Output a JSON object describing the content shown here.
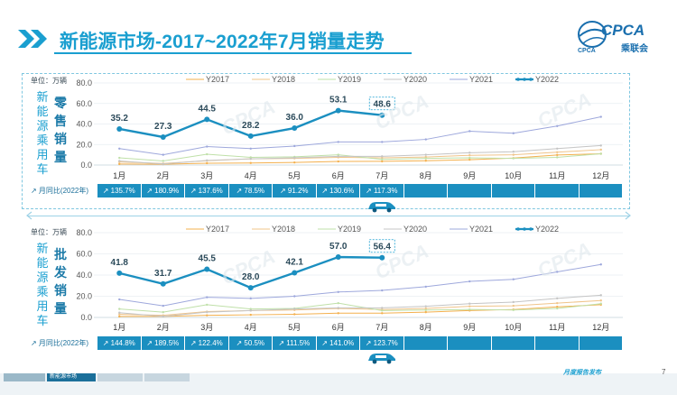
{
  "title": "新能源市场-2017~2022年7月销量走势",
  "logo": {
    "text": "CPCA",
    "subtext": "乘联会",
    "small": "CPCA"
  },
  "side_label": "新能源乘用车",
  "unit_label": "单位：万辆",
  "mom_header": "月同比(2022年)",
  "footer": {
    "tabs": [
      "",
      "新能源市场",
      "",
      ""
    ],
    "note": "月度报告发布",
    "page": "7"
  },
  "colors": {
    "accent": "#1a9fd0",
    "y2022": "#1b8fc0",
    "y2017": "#f3b04e",
    "y2018": "#f0c48a",
    "y2019": "#bfe0a8",
    "y2020": "#c4c4c4",
    "y2021": "#9ea8dc"
  },
  "chart_data": [
    {
      "type": "line",
      "panel_label": "零售销量",
      "months": [
        "1月",
        "2月",
        "3月",
        "4月",
        "5月",
        "6月",
        "7月",
        "8月",
        "9月",
        "10月",
        "11月",
        "12月"
      ],
      "ylim": [
        0,
        80
      ],
      "yticks": [
        "0.0",
        "20.0",
        "40.0",
        "60.0",
        "80.0"
      ],
      "legend": [
        "Y2017",
        "Y2018",
        "Y2019",
        "Y2020",
        "Y2021",
        "Y2022"
      ],
      "series": [
        {
          "name": "Y2017",
          "values": [
            1.0,
            0.8,
            1.8,
            2.0,
            2.5,
            3.5,
            3.6,
            4.2,
            5.2,
            6.8,
            9.8,
            11.0
          ]
        },
        {
          "name": "Y2018",
          "values": [
            3.0,
            1.5,
            4.2,
            6.0,
            6.5,
            7.5,
            7.0,
            7.8,
            9.5,
            10.0,
            12.5,
            15.0
          ]
        },
        {
          "name": "Y2019",
          "values": [
            7.0,
            4.0,
            10.5,
            7.5,
            8.0,
            10.0,
            5.5,
            6.5,
            7.0,
            6.5,
            7.5,
            11.0
          ]
        },
        {
          "name": "Y2020",
          "values": [
            4.0,
            1.0,
            4.5,
            6.0,
            7.0,
            8.5,
            8.5,
            10.0,
            12.0,
            13.0,
            16.0,
            19.0
          ]
        },
        {
          "name": "Y2021",
          "values": [
            16.0,
            10.0,
            18.0,
            16.0,
            18.5,
            22.5,
            22.5,
            25.0,
            33.0,
            31.0,
            38.0,
            47.0
          ]
        },
        {
          "name": "Y2022",
          "values": [
            35.2,
            27.3,
            44.5,
            28.2,
            36.0,
            53.1,
            48.6
          ],
          "labels": [
            "35.2",
            "27.3",
            "44.5",
            "28.2",
            "36.0",
            "53.1",
            "48.6"
          ]
        }
      ],
      "mom": [
        "135.7%",
        "180.9%",
        "137.6%",
        "78.5%",
        "91.2%",
        "130.6%",
        "117.3%"
      ]
    },
    {
      "type": "line",
      "panel_label": "批发销量",
      "months": [
        "1月",
        "2月",
        "3月",
        "4月",
        "5月",
        "6月",
        "7月",
        "8月",
        "9月",
        "10月",
        "11月",
        "12月"
      ],
      "ylim": [
        0,
        80
      ],
      "yticks": [
        "0.0",
        "20.0",
        "40.0",
        "60.0",
        "80.0"
      ],
      "legend": [
        "Y2017",
        "Y2018",
        "Y2019",
        "Y2020",
        "Y2021",
        "Y2022"
      ],
      "series": [
        {
          "name": "Y2017",
          "values": [
            1.0,
            1.0,
            2.0,
            2.5,
            3.0,
            4.0,
            4.0,
            5.0,
            6.5,
            7.5,
            10.0,
            12.0
          ]
        },
        {
          "name": "Y2018",
          "values": [
            3.0,
            2.0,
            5.5,
            6.5,
            7.0,
            8.5,
            7.5,
            8.5,
            10.5,
            11.0,
            13.5,
            16.0
          ]
        },
        {
          "name": "Y2019",
          "values": [
            8.0,
            5.0,
            12.0,
            8.0,
            8.5,
            13.5,
            6.5,
            7.0,
            7.5,
            7.0,
            8.5,
            13.0
          ]
        },
        {
          "name": "Y2020",
          "values": [
            4.5,
            1.0,
            5.0,
            6.5,
            8.0,
            9.0,
            9.0,
            10.5,
            13.0,
            14.5,
            18.0,
            21.0
          ]
        },
        {
          "name": "Y2021",
          "values": [
            17.0,
            11.0,
            19.0,
            18.0,
            20.0,
            24.0,
            25.5,
            29.0,
            34.0,
            36.0,
            43.0,
            50.0
          ]
        },
        {
          "name": "Y2022",
          "values": [
            41.8,
            31.7,
            45.5,
            28.0,
            42.1,
            57.0,
            56.4
          ],
          "labels": [
            "41.8",
            "31.7",
            "45.5",
            "28.0",
            "42.1",
            "57.0",
            "56.4"
          ]
        }
      ],
      "mom": [
        "144.8%",
        "189.5%",
        "122.4%",
        "50.5%",
        "111.5%",
        "141.0%",
        "123.7%"
      ]
    }
  ]
}
